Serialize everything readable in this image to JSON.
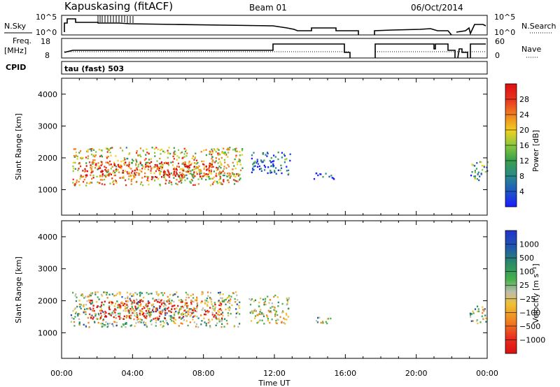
{
  "header": {
    "station": "Kapuskasing (fitACF)",
    "beam": "Beam 01",
    "date": "06/Oct/2014"
  },
  "param_panel": {
    "nsky_label": "N.Sky",
    "left_top_tick": "10^5",
    "left_bottom_tick": "10^0",
    "right_top_tick": "10^5",
    "right_bottom_tick": "10^0",
    "nsearch_label": "N.Search",
    "freq_label": "Freq.",
    "freq_unit": "[MHz]",
    "freq_top_tick": "18",
    "freq_bottom_tick": "8",
    "nave_top_tick": "60",
    "nave_bottom_tick": "0",
    "nave_label": "Nave",
    "cpid_label": "CPID",
    "cpid_value": "tau (fast) 503"
  },
  "chart_data": [
    {
      "type": "heatmap",
      "name": "power",
      "ylabel": "Slant Range [km]",
      "ylim": [
        200,
        4500
      ],
      "yticks": [
        "1000",
        "2000",
        "3000",
        "4000"
      ],
      "xlim": [
        0,
        24
      ],
      "colorbar_label": "Power [dB]",
      "colorbar_ticks": [
        "4",
        "8",
        "12",
        "16",
        "20",
        "24",
        "28"
      ],
      "colorbar_colors": [
        "#1b1bff",
        "#1e55c8",
        "#2a8a8a",
        "#3aa04a",
        "#8ac83c",
        "#f0d020",
        "#f08020",
        "#e83020",
        "#dd1010"
      ],
      "regions": [
        {
          "x0": 0.6,
          "x1": 10.2,
          "y0": 1150,
          "y1": 2350,
          "level": 0.6
        },
        {
          "x0": 1.0,
          "x1": 9.0,
          "y0": 1400,
          "y1": 1900,
          "level": 0.85
        },
        {
          "x0": 10.6,
          "x1": 12.9,
          "y0": 1500,
          "y1": 2200,
          "level": 0.2
        },
        {
          "x0": 14.2,
          "x1": 15.4,
          "y0": 1350,
          "y1": 1550,
          "level": 0.1
        },
        {
          "x0": 23.0,
          "x1": 24.0,
          "y0": 1300,
          "y1": 1900,
          "level": 0.35
        }
      ]
    },
    {
      "type": "heatmap",
      "name": "velocity",
      "ylabel": "Slant Range [km]",
      "ylim": [
        200,
        4500
      ],
      "yticks": [
        "1000",
        "2000",
        "3000",
        "4000"
      ],
      "xlim": [
        0,
        24
      ],
      "xlabel": "Time UT",
      "xticks": [
        "00:00",
        "04:00",
        "08:00",
        "12:00",
        "16:00",
        "20:00",
        "00:00"
      ],
      "colorbar_label": "Velocity [m s⁻¹]",
      "colorbar_ticks": [
        "1000",
        "500",
        "100",
        "25",
        "−25",
        "−100",
        "−500",
        "−1000"
      ],
      "colorbar_colors": [
        "#2233cc",
        "#2255b0",
        "#2a8a6a",
        "#46b24a",
        "#bdbdb0",
        "#f0c030",
        "#f08020",
        "#e83020",
        "#dd1010"
      ],
      "regions": [
        {
          "x0": 0.5,
          "x1": 10.0,
          "y0": 1200,
          "y1": 2300,
          "level": 0.45
        },
        {
          "x0": 1.5,
          "x1": 9.0,
          "y0": 1450,
          "y1": 2050,
          "level": 0.85
        },
        {
          "x0": 10.5,
          "x1": 12.8,
          "y0": 1300,
          "y1": 2200,
          "level": 0.5
        },
        {
          "x0": 14.3,
          "x1": 15.4,
          "y0": 1300,
          "y1": 1500,
          "level": 0.45
        },
        {
          "x0": 23.0,
          "x1": 24.0,
          "y0": 1300,
          "y1": 1850,
          "level": 0.45
        }
      ]
    }
  ]
}
